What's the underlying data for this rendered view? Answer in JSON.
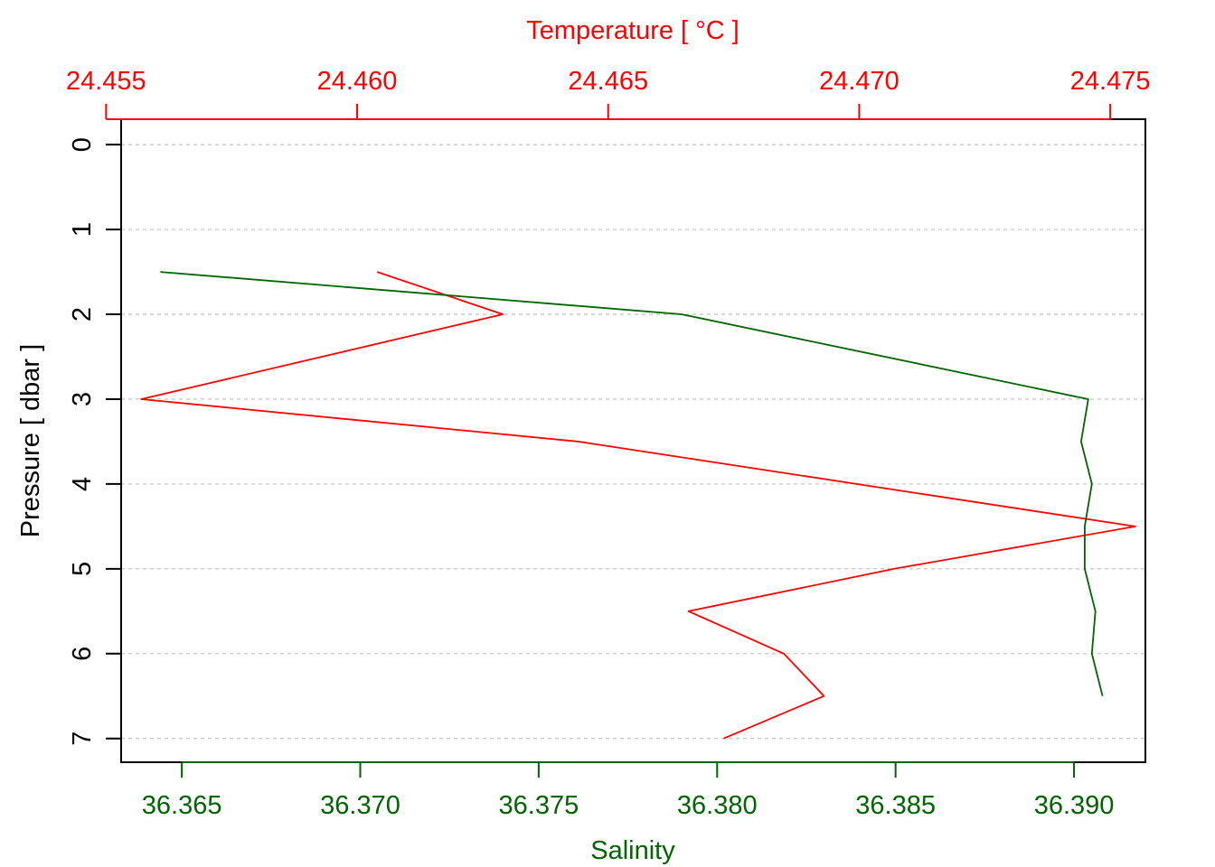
{
  "chart_data": {
    "type": "line",
    "title": "",
    "colors": {
      "temperature": "#ff0000",
      "salinity": "#006400",
      "frame": "#000000",
      "grid": "#c8c8c8"
    },
    "top_axis": {
      "label": "Temperature [ °C ]",
      "range": [
        24.4553,
        24.4757
      ],
      "ticks": [
        24.455,
        24.46,
        24.465,
        24.47,
        24.475
      ],
      "tick_labels": [
        "24.455",
        "24.460",
        "24.465",
        "24.470",
        "24.475"
      ]
    },
    "bottom_axis": {
      "label": "Salinity",
      "range": [
        36.3633,
        36.392
      ],
      "ticks": [
        36.365,
        36.37,
        36.375,
        36.38,
        36.385,
        36.39
      ],
      "tick_labels": [
        "36.365",
        "36.370",
        "36.375",
        "36.380",
        "36.385",
        "36.390"
      ]
    },
    "left_axis": {
      "label": "Pressure [ dbar ]",
      "range": [
        -0.3,
        7.28
      ],
      "reversed": true,
      "ticks": [
        0,
        1,
        2,
        3,
        4,
        5,
        6,
        7
      ],
      "tick_labels": [
        "0",
        "1",
        "2",
        "3",
        "4",
        "5",
        "6",
        "7"
      ]
    },
    "grid": true,
    "series": [
      {
        "key": "temperature",
        "axis": "top",
        "points": [
          [
            24.4604,
            1.5
          ],
          [
            24.4629,
            2.0
          ],
          [
            24.4557,
            3.0
          ],
          [
            24.4644,
            3.5
          ],
          [
            24.4755,
            4.5
          ],
          [
            24.4707,
            5.0
          ],
          [
            24.4666,
            5.5
          ],
          [
            24.4685,
            6.0
          ],
          [
            24.4693,
            6.5
          ],
          [
            24.4673,
            7.0
          ]
        ]
      },
      {
        "key": "salinity",
        "axis": "bottom",
        "points": [
          [
            36.3644,
            1.5
          ],
          [
            36.379,
            2.0
          ],
          [
            36.3904,
            3.0
          ],
          [
            36.3902,
            3.5
          ],
          [
            36.3905,
            4.0
          ],
          [
            36.3903,
            4.5
          ],
          [
            36.3903,
            5.0
          ],
          [
            36.3906,
            5.5
          ],
          [
            36.3905,
            6.0
          ],
          [
            36.3908,
            6.5
          ]
        ]
      }
    ]
  }
}
